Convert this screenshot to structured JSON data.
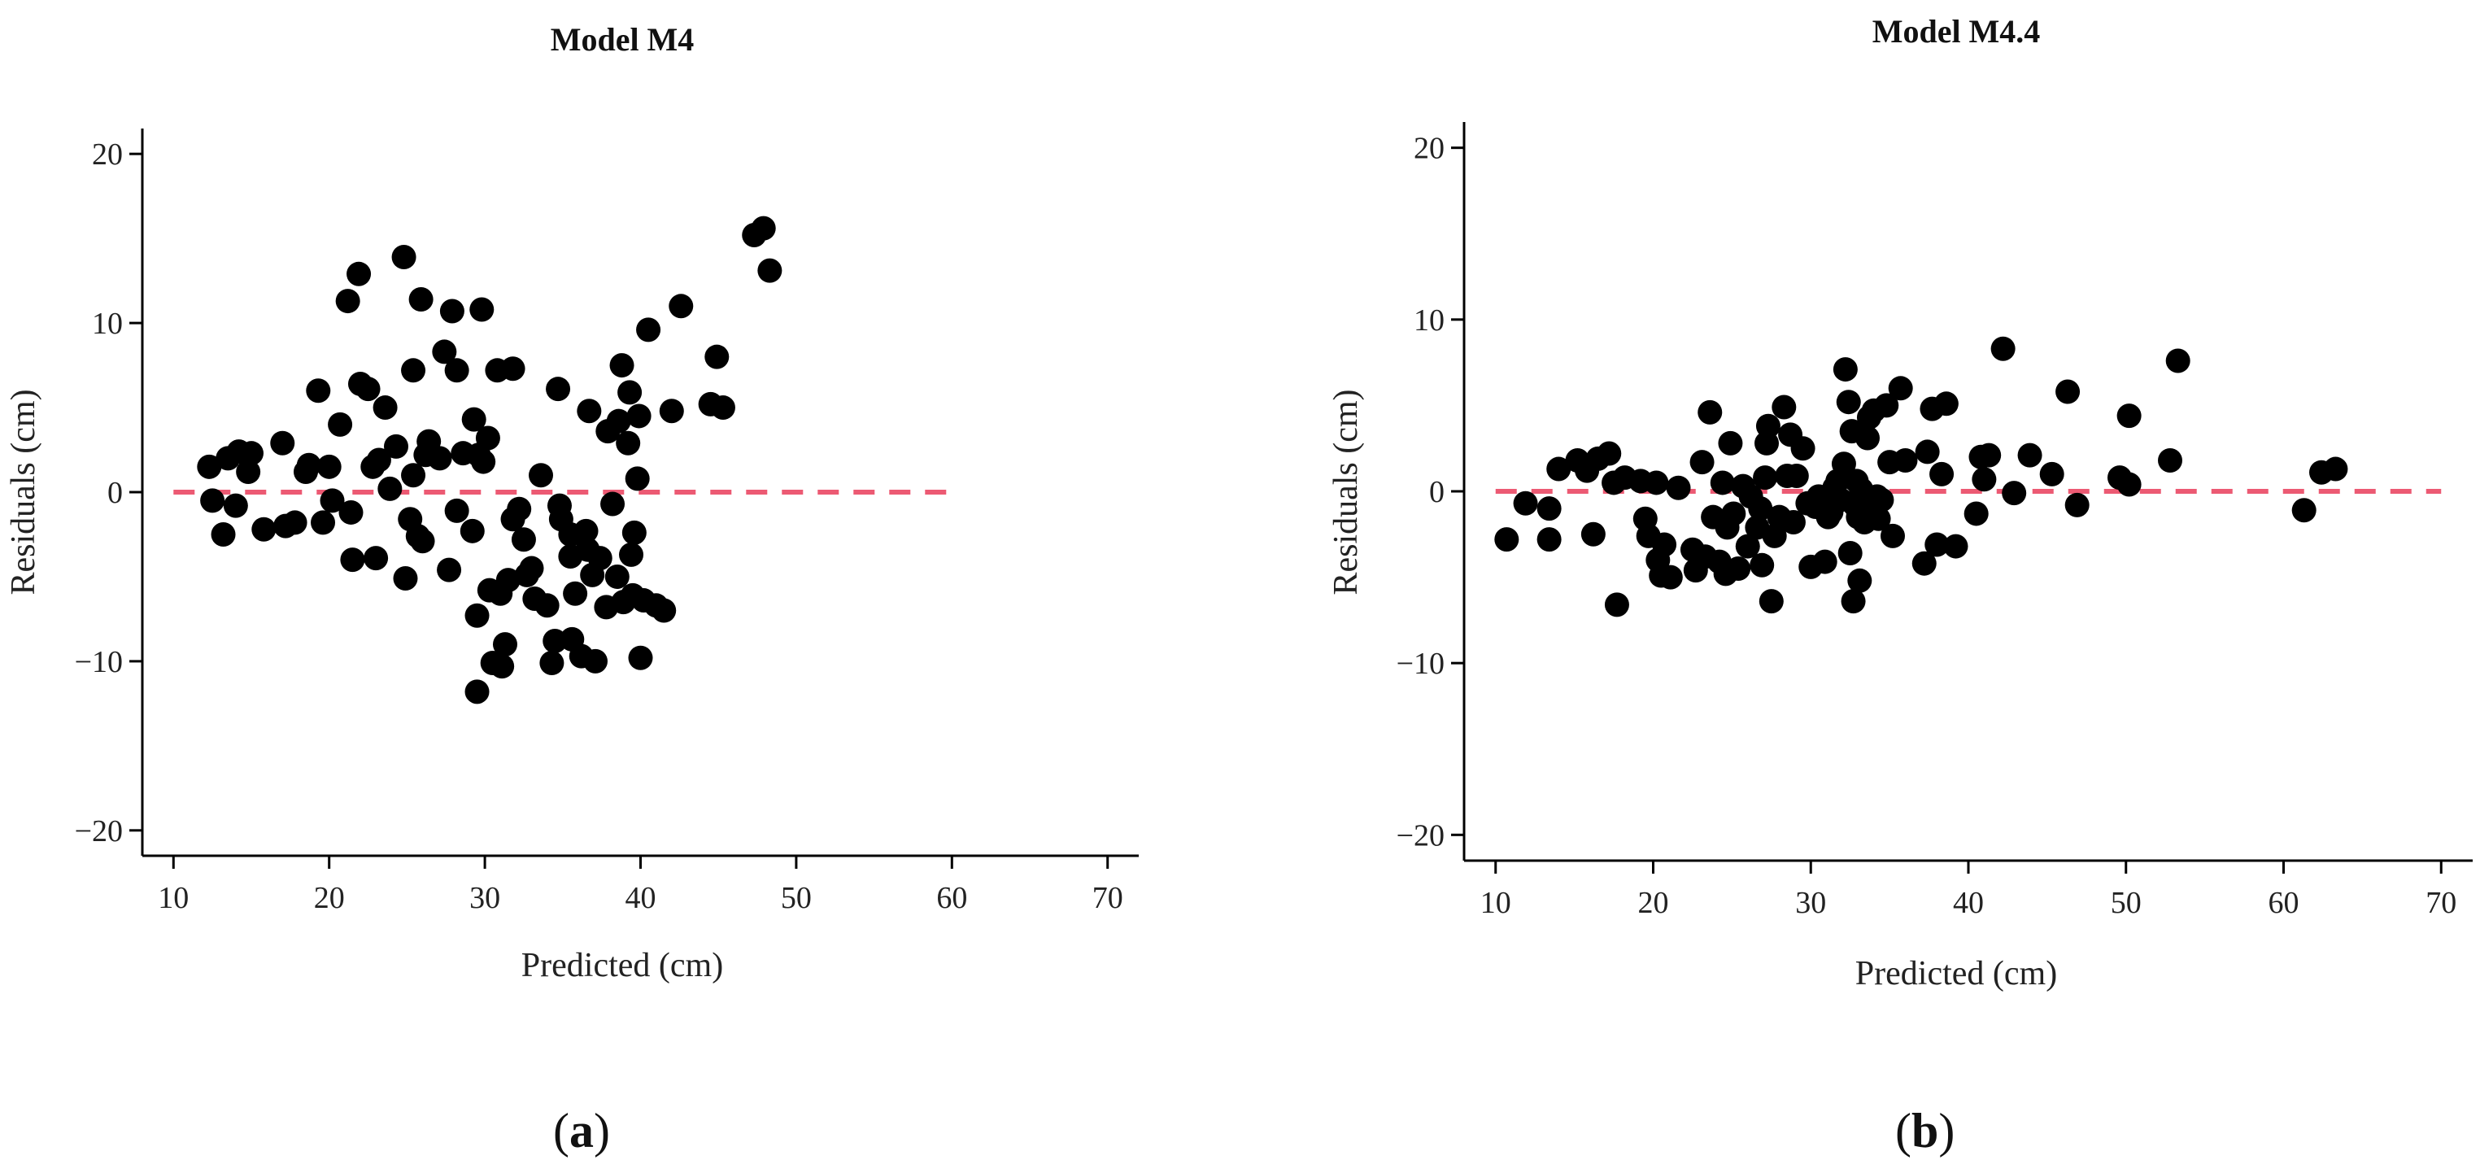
{
  "figure": {
    "panel_labels": [
      {
        "open": "(",
        "letter": "a",
        "close": ")"
      },
      {
        "open": "(",
        "letter": "b",
        "close": ")"
      }
    ]
  },
  "chart_data": [
    {
      "type": "scatter",
      "title": "Model M4",
      "xlabel": "Predicted (cm)",
      "ylabel": "Residuals (cm)",
      "xlim": [
        8,
        72
      ],
      "ylim": [
        -21.5,
        21.5
      ],
      "xticks": [
        10,
        20,
        30,
        40,
        50,
        60,
        70
      ],
      "yticks": [
        -20,
        -10,
        0,
        10,
        20
      ],
      "xtick_labels": [
        "10",
        "20",
        "30",
        "40",
        "50",
        "60",
        "70"
      ],
      "ytick_labels": [
        "−20",
        "−10",
        "0",
        "10",
        "20"
      ],
      "reference_line": {
        "y": 0,
        "x_range": [
          10,
          60
        ],
        "style": "dashed",
        "color": "#ec5a73"
      },
      "point_color": "#000000",
      "points": [
        [
          12.3,
          1.5
        ],
        [
          12.5,
          -0.5
        ],
        [
          13.2,
          -2.5
        ],
        [
          13.5,
          2.0
        ],
        [
          14.0,
          -0.8
        ],
        [
          14.2,
          2.4
        ],
        [
          14.8,
          1.2
        ],
        [
          15.0,
          2.3
        ],
        [
          15.8,
          -2.2
        ],
        [
          17.0,
          2.9
        ],
        [
          17.2,
          -2.0
        ],
        [
          17.8,
          -1.8
        ],
        [
          18.5,
          1.2
        ],
        [
          18.7,
          1.6
        ],
        [
          19.3,
          6.0
        ],
        [
          19.6,
          -1.8
        ],
        [
          20.0,
          1.5
        ],
        [
          20.2,
          -0.5
        ],
        [
          20.7,
          4.0
        ],
        [
          21.2,
          11.3
        ],
        [
          21.4,
          -1.2
        ],
        [
          21.5,
          -4.0
        ],
        [
          21.9,
          12.9
        ],
        [
          22.0,
          6.4
        ],
        [
          22.5,
          6.1
        ],
        [
          22.8,
          1.5
        ],
        [
          23.0,
          -3.9
        ],
        [
          23.2,
          1.9
        ],
        [
          23.6,
          5.0
        ],
        [
          23.9,
          0.2
        ],
        [
          24.3,
          2.7
        ],
        [
          24.8,
          13.9
        ],
        [
          24.9,
          -5.1
        ],
        [
          25.2,
          -1.6
        ],
        [
          25.4,
          1.0
        ],
        [
          25.4,
          7.2
        ],
        [
          25.7,
          -2.6
        ],
        [
          25.9,
          11.4
        ],
        [
          26.0,
          -2.9
        ],
        [
          26.2,
          2.2
        ],
        [
          26.4,
          3.0
        ],
        [
          27.1,
          2.0
        ],
        [
          27.4,
          8.3
        ],
        [
          27.7,
          -4.6
        ],
        [
          27.9,
          10.7
        ],
        [
          28.2,
          7.2
        ],
        [
          28.2,
          -1.1
        ],
        [
          28.6,
          2.3
        ],
        [
          29.2,
          -2.3
        ],
        [
          29.3,
          4.3
        ],
        [
          29.5,
          -7.3
        ],
        [
          29.5,
          -11.8
        ],
        [
          29.6,
          2.2
        ],
        [
          29.8,
          10.8
        ],
        [
          29.9,
          1.8
        ],
        [
          30.2,
          3.2
        ],
        [
          30.3,
          -5.8
        ],
        [
          30.5,
          -10.1
        ],
        [
          30.8,
          7.2
        ],
        [
          31.0,
          -6.0
        ],
        [
          31.1,
          -10.3
        ],
        [
          31.3,
          -9.0
        ],
        [
          31.5,
          -5.2
        ],
        [
          31.8,
          7.3
        ],
        [
          31.8,
          -1.6
        ],
        [
          32.2,
          -1.0
        ],
        [
          32.5,
          -2.8
        ],
        [
          32.7,
          -4.9
        ],
        [
          33.0,
          -4.5
        ],
        [
          33.2,
          -6.3
        ],
        [
          33.6,
          1.0
        ],
        [
          34.0,
          -6.7
        ],
        [
          34.3,
          -10.1
        ],
        [
          34.5,
          -8.8
        ],
        [
          34.7,
          6.1
        ],
        [
          34.8,
          -0.8
        ],
        [
          34.9,
          -1.6
        ],
        [
          35.5,
          -2.5
        ],
        [
          35.5,
          -3.8
        ],
        [
          35.6,
          -8.7
        ],
        [
          35.8,
          -6.0
        ],
        [
          36.2,
          -9.7
        ],
        [
          36.5,
          -2.3
        ],
        [
          36.6,
          -3.4
        ],
        [
          36.7,
          4.8
        ],
        [
          36.9,
          -4.9
        ],
        [
          37.1,
          -10.0
        ],
        [
          37.4,
          -3.9
        ],
        [
          37.8,
          -6.8
        ],
        [
          37.9,
          3.6
        ],
        [
          38.2,
          -0.7
        ],
        [
          38.5,
          -5.0
        ],
        [
          38.6,
          4.2
        ],
        [
          38.8,
          7.5
        ],
        [
          38.9,
          -6.5
        ],
        [
          39.2,
          2.9
        ],
        [
          39.3,
          5.9
        ],
        [
          39.4,
          -3.7
        ],
        [
          39.5,
          -6.1
        ],
        [
          39.6,
          -2.4
        ],
        [
          39.8,
          0.8
        ],
        [
          39.9,
          4.5
        ],
        [
          40.0,
          -9.8
        ],
        [
          40.2,
          -6.4
        ],
        [
          40.5,
          9.6
        ],
        [
          41.0,
          -6.7
        ],
        [
          41.5,
          -7.0
        ],
        [
          42.0,
          4.8
        ],
        [
          42.6,
          11.0
        ],
        [
          44.5,
          5.2
        ],
        [
          44.9,
          8.0
        ],
        [
          45.3,
          5.0
        ],
        [
          47.3,
          15.2
        ],
        [
          47.9,
          15.6
        ],
        [
          48.3,
          13.1
        ]
      ]
    },
    {
      "type": "scatter",
      "title": "Model M4.4",
      "xlabel": "Predicted (cm)",
      "ylabel": "Residuals (cm)",
      "xlim": [
        8,
        72
      ],
      "ylim": [
        -21.5,
        21.5
      ],
      "xticks": [
        10,
        20,
        30,
        40,
        50,
        60,
        70
      ],
      "yticks": [
        -20,
        -10,
        0,
        10,
        20
      ],
      "xtick_labels": [
        "10",
        "20",
        "30",
        "40",
        "50",
        "60",
        "70"
      ],
      "ytick_labels": [
        "−20",
        "−10",
        "0",
        "10",
        "20"
      ],
      "reference_line": {
        "y": 0,
        "x_range": [
          10,
          70
        ],
        "style": "dashed",
        "color": "#ec5a73"
      },
      "point_color": "#000000",
      "points": [
        [
          10.7,
          -2.8
        ],
        [
          11.9,
          -0.7
        ],
        [
          13.4,
          -1.0
        ],
        [
          13.4,
          -2.8
        ],
        [
          14.0,
          1.3
        ],
        [
          15.2,
          1.8
        ],
        [
          15.8,
          1.2
        ],
        [
          16.2,
          -2.5
        ],
        [
          16.5,
          1.9
        ],
        [
          17.2,
          2.2
        ],
        [
          17.5,
          0.5
        ],
        [
          17.7,
          -6.6
        ],
        [
          18.2,
          0.8
        ],
        [
          19.2,
          0.6
        ],
        [
          19.5,
          -1.6
        ],
        [
          19.7,
          -2.6
        ],
        [
          20.2,
          0.5
        ],
        [
          20.3,
          -4.0
        ],
        [
          20.5,
          -4.9
        ],
        [
          20.7,
          -3.1
        ],
        [
          21.1,
          -5.0
        ],
        [
          21.6,
          0.2
        ],
        [
          22.5,
          -3.4
        ],
        [
          22.7,
          -4.6
        ],
        [
          23.1,
          1.7
        ],
        [
          23.3,
          -3.8
        ],
        [
          23.6,
          4.6
        ],
        [
          23.8,
          -1.5
        ],
        [
          24.2,
          -4.1
        ],
        [
          24.4,
          0.5
        ],
        [
          24.6,
          -4.8
        ],
        [
          24.7,
          -2.1
        ],
        [
          24.9,
          2.8
        ],
        [
          25.1,
          -1.3
        ],
        [
          25.4,
          -4.5
        ],
        [
          25.7,
          0.3
        ],
        [
          26.0,
          -3.2
        ],
        [
          26.2,
          -0.3
        ],
        [
          26.6,
          -2.1
        ],
        [
          26.8,
          -1.0
        ],
        [
          26.9,
          -4.3
        ],
        [
          27.1,
          0.8
        ],
        [
          27.2,
          2.8
        ],
        [
          27.3,
          3.8
        ],
        [
          27.5,
          -6.4
        ],
        [
          27.7,
          -2.6
        ],
        [
          28.0,
          -1.5
        ],
        [
          28.3,
          4.9
        ],
        [
          28.5,
          0.9
        ],
        [
          28.7,
          3.3
        ],
        [
          28.9,
          -1.8
        ],
        [
          29.1,
          0.9
        ],
        [
          29.5,
          2.5
        ],
        [
          29.8,
          -0.7
        ],
        [
          30.0,
          -4.4
        ],
        [
          30.3,
          -0.9
        ],
        [
          30.5,
          -0.3
        ],
        [
          30.7,
          -0.9
        ],
        [
          30.9,
          -4.1
        ],
        [
          31.1,
          -1.5
        ],
        [
          31.3,
          -1.2
        ],
        [
          31.5,
          0.2
        ],
        [
          31.7,
          0.6
        ],
        [
          31.9,
          -0.5
        ],
        [
          32.1,
          1.6
        ],
        [
          32.2,
          7.1
        ],
        [
          32.4,
          5.2
        ],
        [
          32.5,
          -3.6
        ],
        [
          32.6,
          3.5
        ],
        [
          32.7,
          -6.4
        ],
        [
          32.8,
          -0.8
        ],
        [
          32.9,
          0.6
        ],
        [
          33.0,
          -1.5
        ],
        [
          33.1,
          -5.2
        ],
        [
          33.2,
          0.1
        ],
        [
          33.3,
          -0.6
        ],
        [
          33.4,
          -1.8
        ],
        [
          33.6,
          3.1
        ],
        [
          33.7,
          4.3
        ],
        [
          33.9,
          -1.1
        ],
        [
          34.0,
          4.7
        ],
        [
          34.2,
          -0.3
        ],
        [
          34.3,
          -1.6
        ],
        [
          34.5,
          -0.5
        ],
        [
          34.8,
          5.0
        ],
        [
          35.0,
          1.7
        ],
        [
          35.2,
          -2.6
        ],
        [
          35.7,
          6.0
        ],
        [
          36.0,
          1.8
        ],
        [
          37.2,
          -4.2
        ],
        [
          37.4,
          2.3
        ],
        [
          37.7,
          4.8
        ],
        [
          38.0,
          -3.1
        ],
        [
          38.3,
          1.0
        ],
        [
          38.6,
          5.1
        ],
        [
          39.2,
          -3.2
        ],
        [
          40.5,
          -1.3
        ],
        [
          40.8,
          2.0
        ],
        [
          41.0,
          0.7
        ],
        [
          41.3,
          2.1
        ],
        [
          42.2,
          8.3
        ],
        [
          42.9,
          -0.1
        ],
        [
          43.9,
          2.1
        ],
        [
          45.3,
          1.0
        ],
        [
          46.3,
          5.8
        ],
        [
          46.9,
          -0.8
        ],
        [
          49.6,
          0.8
        ],
        [
          50.2,
          0.4
        ],
        [
          50.2,
          4.4
        ],
        [
          52.8,
          1.8
        ],
        [
          53.3,
          7.6
        ],
        [
          61.3,
          -1.1
        ],
        [
          62.4,
          1.1
        ],
        [
          63.3,
          1.3
        ]
      ]
    }
  ]
}
